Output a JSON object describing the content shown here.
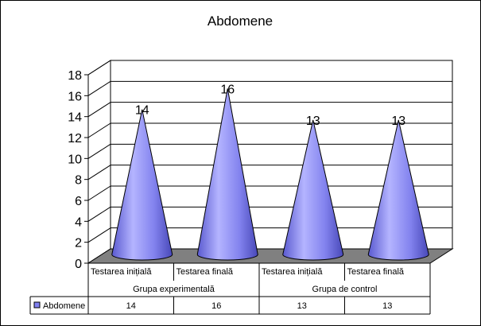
{
  "chart_data": {
    "type": "bar",
    "subtype": "3d-cone",
    "title": "Abdomene",
    "categories": [
      {
        "label": "Testarea inițială",
        "group": "Grupa experimentală"
      },
      {
        "label": "Testarea finală",
        "group": "Grupa experimentală"
      },
      {
        "label": "Testarea inițială",
        "group": "Grupa de control"
      },
      {
        "label": "Testarea finală",
        "group": "Grupa de control"
      }
    ],
    "groups": [
      "Grupa experimentală",
      "Grupa de control"
    ],
    "series": [
      {
        "name": "Abdomene",
        "values": [
          14,
          16,
          13,
          13
        ],
        "color": "#8080f0"
      }
    ],
    "data_labels": [
      "14",
      "16",
      "13",
      "13"
    ],
    "ylim": [
      0,
      18
    ],
    "yticks": [
      "0",
      "2",
      "4",
      "6",
      "8",
      "10",
      "12",
      "14",
      "16",
      "18"
    ],
    "grid": true,
    "legend": "data-table",
    "floor_color": "#808080",
    "xlabel": "",
    "ylabel": ""
  }
}
